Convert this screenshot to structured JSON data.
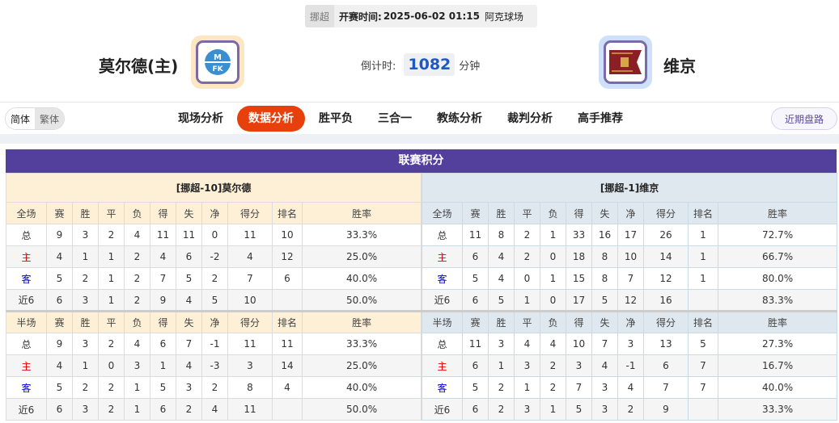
{
  "match": {
    "league": "挪超",
    "kickoff_label": "开赛时间:",
    "kickoff": "2025-06-02 01:15",
    "venue": "阿克球场",
    "home": {
      "name": "莫尔德(主)",
      "logo": "molde-fk-logo",
      "accent": "#fde6c4"
    },
    "away": {
      "name": "维京",
      "logo": "viking-fk-logo",
      "accent": "#cfe0fb"
    },
    "countdown_label": "倒计时:",
    "countdown": "1082",
    "countdown_unit": "分钟"
  },
  "lang": {
    "simplified": "简体",
    "traditional": "繁体"
  },
  "nav": {
    "items": [
      "现场分析",
      "数据分析",
      "胜平负",
      "三合一",
      "教练分析",
      "裁判分析",
      "高手推荐"
    ],
    "active": 1,
    "recent": "近期盘路"
  },
  "standings": {
    "title": "联赛积分",
    "accent": "#533f9c",
    "columns_full": [
      "全场",
      "赛",
      "胜",
      "平",
      "负",
      "得",
      "失",
      "净",
      "得分",
      "排名",
      "胜率"
    ],
    "columns_half": [
      "半场",
      "赛",
      "胜",
      "平",
      "负",
      "得",
      "失",
      "净",
      "得分",
      "排名",
      "胜率"
    ],
    "home": {
      "team": "[挪超-10]莫尔德",
      "full": [
        [
          "总",
          "9",
          "3",
          "2",
          "4",
          "11",
          "11",
          "0",
          "11",
          "10",
          "33.3%"
        ],
        [
          "主",
          "4",
          "1",
          "1",
          "2",
          "4",
          "6",
          "-2",
          "4",
          "12",
          "25.0%"
        ],
        [
          "客",
          "5",
          "2",
          "1",
          "2",
          "7",
          "5",
          "2",
          "7",
          "6",
          "40.0%"
        ],
        [
          "近6",
          "6",
          "3",
          "1",
          "2",
          "9",
          "4",
          "5",
          "10",
          "",
          "50.0%"
        ]
      ],
      "half": [
        [
          "总",
          "9",
          "3",
          "2",
          "4",
          "6",
          "7",
          "-1",
          "11",
          "11",
          "33.3%"
        ],
        [
          "主",
          "4",
          "1",
          "0",
          "3",
          "1",
          "4",
          "-3",
          "3",
          "14",
          "25.0%"
        ],
        [
          "客",
          "5",
          "2",
          "2",
          "1",
          "5",
          "3",
          "2",
          "8",
          "4",
          "40.0%"
        ],
        [
          "近6",
          "6",
          "3",
          "2",
          "1",
          "6",
          "2",
          "4",
          "11",
          "",
          "50.0%"
        ]
      ]
    },
    "away": {
      "team": "[挪超-1]维京",
      "full": [
        [
          "总",
          "11",
          "8",
          "2",
          "1",
          "33",
          "16",
          "17",
          "26",
          "1",
          "72.7%"
        ],
        [
          "主",
          "6",
          "4",
          "2",
          "0",
          "18",
          "8",
          "10",
          "14",
          "1",
          "66.7%"
        ],
        [
          "客",
          "5",
          "4",
          "0",
          "1",
          "15",
          "8",
          "7",
          "12",
          "1",
          "80.0%"
        ],
        [
          "近6",
          "6",
          "5",
          "1",
          "0",
          "17",
          "5",
          "12",
          "16",
          "",
          "83.3%"
        ]
      ],
      "half": [
        [
          "总",
          "11",
          "3",
          "4",
          "4",
          "10",
          "7",
          "3",
          "13",
          "5",
          "27.3%"
        ],
        [
          "主",
          "6",
          "1",
          "3",
          "2",
          "3",
          "4",
          "-1",
          "6",
          "7",
          "16.7%"
        ],
        [
          "客",
          "5",
          "2",
          "1",
          "2",
          "7",
          "3",
          "4",
          "7",
          "7",
          "40.0%"
        ],
        [
          "近6",
          "6",
          "2",
          "3",
          "1",
          "5",
          "3",
          "2",
          "9",
          "",
          "33.3%"
        ]
      ]
    }
  }
}
